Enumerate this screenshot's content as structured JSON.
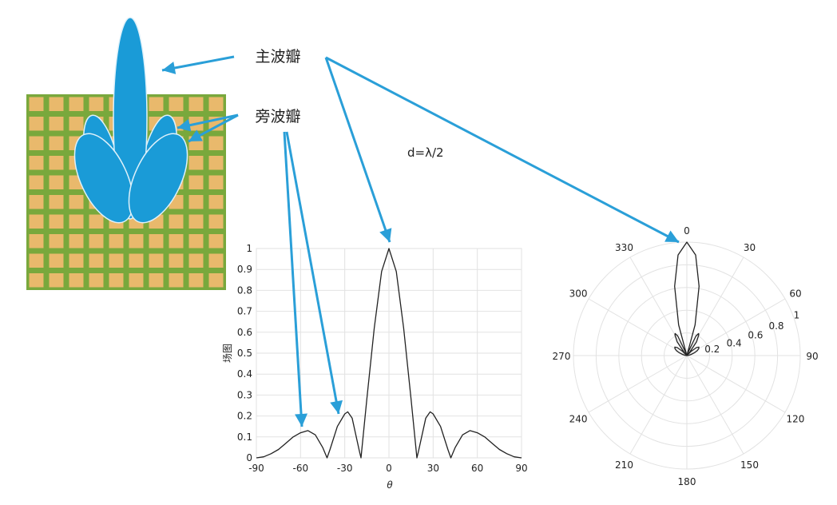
{
  "labels": {
    "main_lobe": "主波瓣",
    "side_lobe": "旁波瓣",
    "spacing": "d=λ/2"
  },
  "colors": {
    "lobe_blue": "#1a9bd7",
    "arrow_blue": "#2a9fd8",
    "board_green": "#79a83c",
    "cell_orange": "#e9b96c",
    "curve": "#222222"
  },
  "array_grid": {
    "rows": 10,
    "cols": 10
  },
  "chart_data": [
    {
      "type": "line",
      "title": "",
      "xlabel": "θ",
      "ylabel": "场图",
      "xlim": [
        -90,
        90
      ],
      "ylim": [
        0,
        1
      ],
      "xticks": [
        "-90",
        "-60",
        "-30",
        "0",
        "30",
        "60",
        "90"
      ],
      "yticks": [
        "0",
        "0.1",
        "0.2",
        "0.3",
        "0.4",
        "0.5",
        "0.6",
        "0.7",
        "0.8",
        "0.9",
        "1"
      ],
      "grid": true,
      "x": [
        -90,
        -85,
        -80,
        -75,
        -70,
        -65,
        -60,
        -55,
        -50,
        -45,
        -42,
        -40,
        -35,
        -30,
        -28,
        -25,
        -20,
        -19,
        -15,
        -10,
        -5,
        0,
        5,
        10,
        15,
        19,
        20,
        25,
        28,
        30,
        35,
        40,
        42,
        45,
        50,
        55,
        60,
        65,
        70,
        75,
        80,
        85,
        90
      ],
      "y": [
        0,
        0.005,
        0.02,
        0.04,
        0.07,
        0.1,
        0.12,
        0.13,
        0.11,
        0.05,
        0,
        0.04,
        0.15,
        0.21,
        0.22,
        0.19,
        0.03,
        0,
        0.28,
        0.62,
        0.89,
        1,
        0.89,
        0.62,
        0.28,
        0,
        0.03,
        0.19,
        0.22,
        0.21,
        0.15,
        0.04,
        0,
        0.05,
        0.11,
        0.13,
        0.12,
        0.1,
        0.07,
        0.04,
        0.02,
        0.005,
        0
      ]
    },
    {
      "type": "polar",
      "title": "",
      "angle_ticks": [
        "0",
        "30",
        "60",
        "90",
        "120",
        "150",
        "180",
        "210",
        "240",
        "270",
        "300",
        "330"
      ],
      "radial_ticks": [
        "0.2",
        "0.4",
        "0.6",
        "0.8",
        "1"
      ],
      "rlim": [
        0,
        1
      ],
      "grid": true,
      "note_series": "same pattern as line chart, plotted over angle"
    }
  ]
}
